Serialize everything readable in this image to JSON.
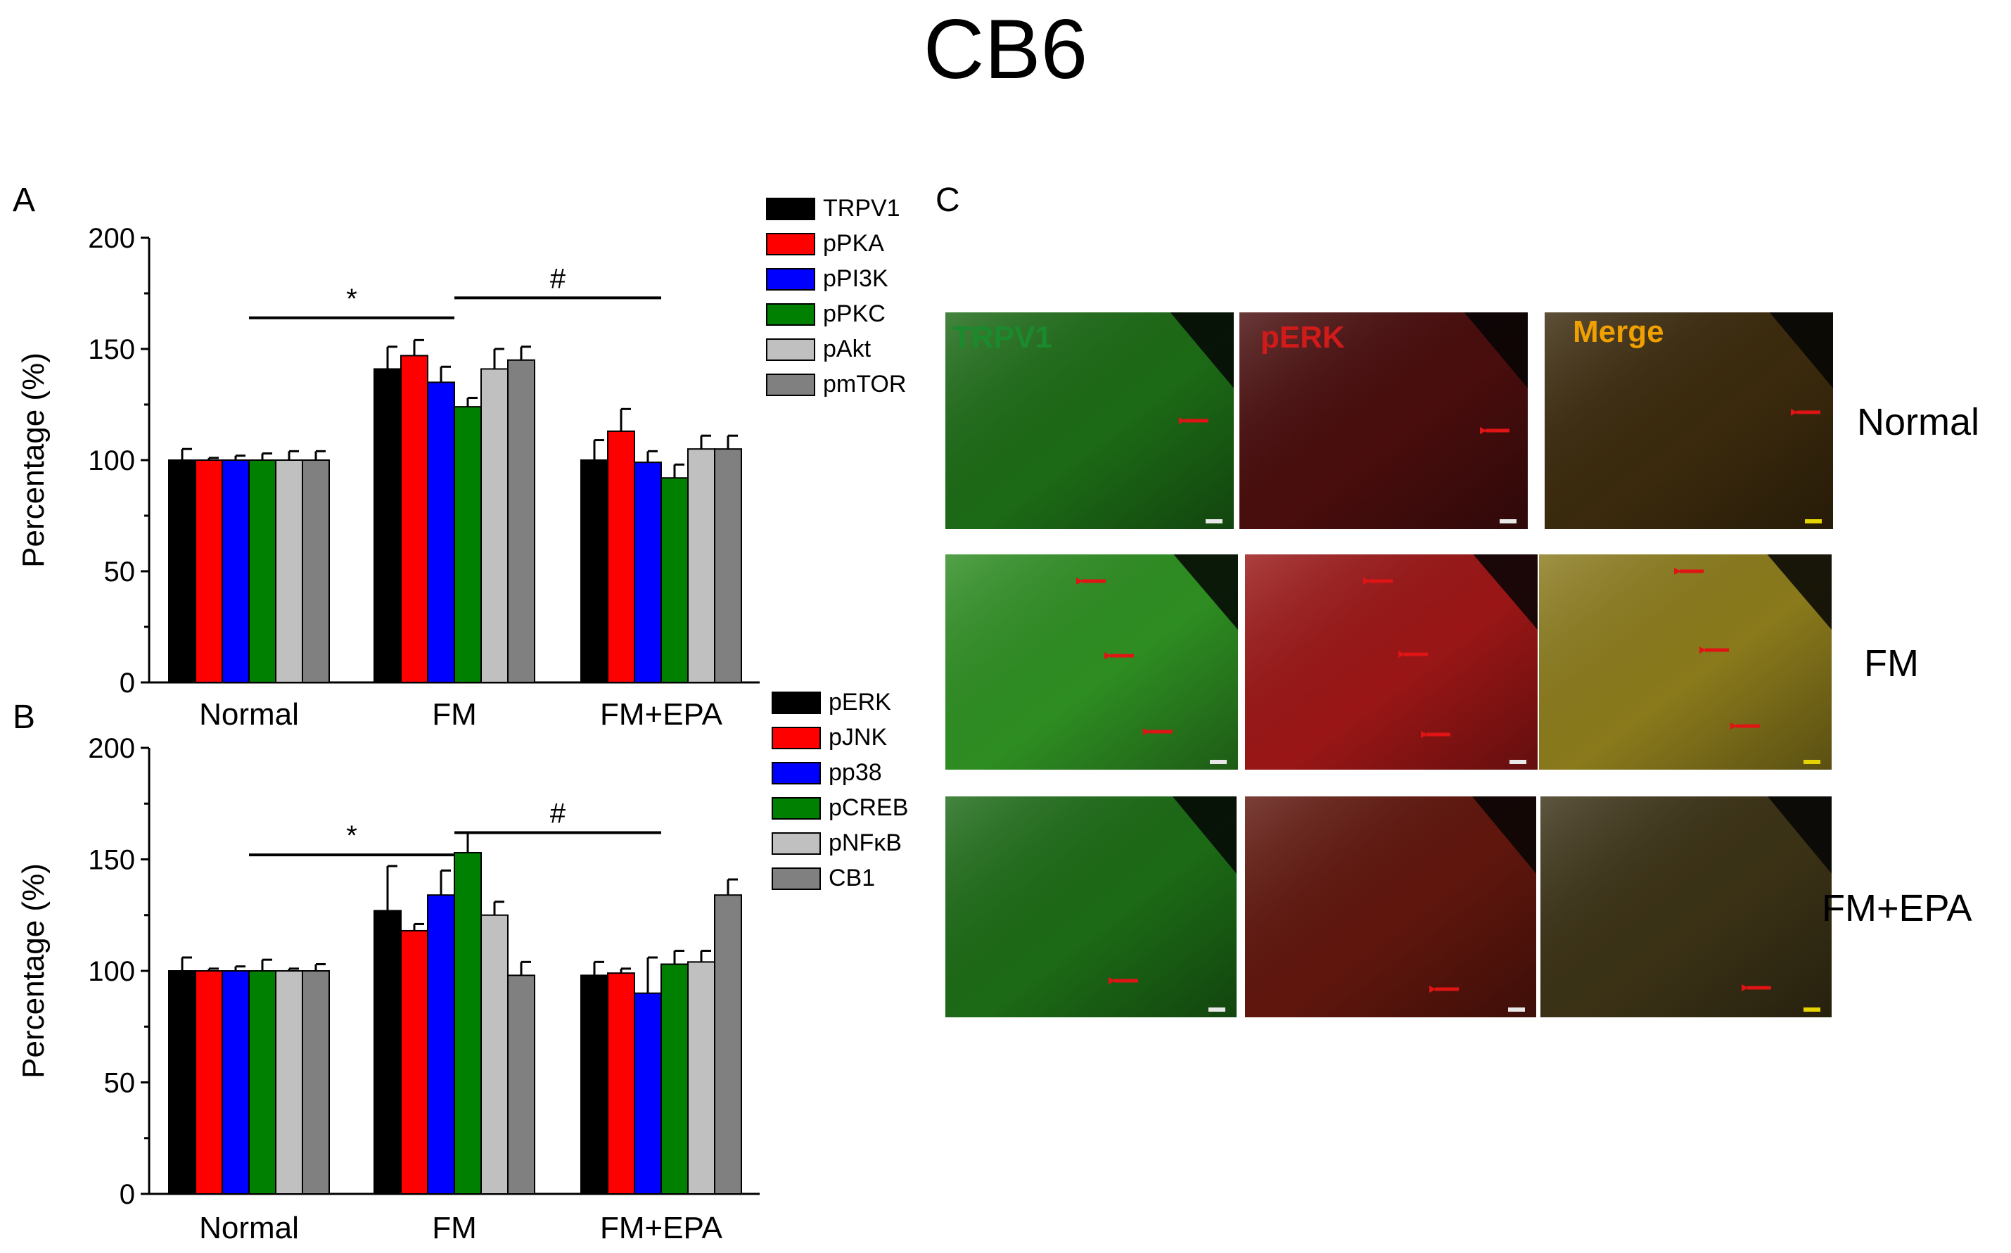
{
  "figure": {
    "title": "CB6",
    "panel_c_letter": "C",
    "micrographs": {
      "channel_labels": [
        "TRPV1",
        "pERK",
        "Merge"
      ],
      "channel_label_colors": [
        "#1a8a2c",
        "#d11a1a",
        "#f0a000"
      ],
      "row_labels": [
        "Normal",
        "FM",
        "FM+EPA"
      ],
      "tints": [
        [
          "#1f6a14",
          "#4a0f0b",
          "#3a2a10"
        ],
        [
          "#2f8d20",
          "#9a1614",
          "#8a7a1c"
        ],
        [
          "#1d6a16",
          "#5e1210",
          "#3a3212"
        ]
      ],
      "arrow_color": "#e01414",
      "scale_bar_color": "#e8e8e8",
      "merge_scale_bar_color": "#e6d400"
    },
    "colors": {
      "series": [
        "#000000",
        "#ff0000",
        "#0000ff",
        "#008000",
        "#c0c0c0",
        "#808080"
      ]
    }
  },
  "chart_data": [
    {
      "panel": "A",
      "type": "bar",
      "ylabel": "Percentage (%)",
      "xlabel": "",
      "ylim": [
        0,
        200
      ],
      "yticks": [
        0,
        50,
        100,
        150,
        200
      ],
      "categories": [
        "Normal",
        "FM",
        "FM+EPA"
      ],
      "series": [
        {
          "name": "TRPV1",
          "values": [
            100,
            141,
            100
          ],
          "errors": [
            5,
            10,
            9
          ]
        },
        {
          "name": "pPKA",
          "values": [
            100,
            147,
            113
          ],
          "errors": [
            1,
            7,
            10
          ]
        },
        {
          "name": "pPI3K",
          "values": [
            100,
            135,
            99
          ],
          "errors": [
            2,
            7,
            5
          ]
        },
        {
          "name": "pPKC",
          "values": [
            100,
            124,
            92
          ],
          "errors": [
            3,
            4,
            6
          ]
        },
        {
          "name": "pAkt",
          "values": [
            100,
            141,
            105
          ],
          "errors": [
            4,
            9,
            6
          ]
        },
        {
          "name": "pmTOR",
          "values": [
            100,
            145,
            105
          ],
          "errors": [
            4,
            6,
            6
          ]
        }
      ],
      "annotations": [
        {
          "text": "*",
          "from": "Normal",
          "to": "FM",
          "y": 164
        },
        {
          "text": "#",
          "from": "FM",
          "to": "FM+EPA",
          "y": 173
        }
      ]
    },
    {
      "panel": "B",
      "type": "bar",
      "ylabel": "Percentage (%)",
      "xlabel": "",
      "ylim": [
        0,
        200
      ],
      "yticks": [
        0,
        50,
        100,
        150,
        200
      ],
      "categories": [
        "Normal",
        "FM",
        "FM+EPA"
      ],
      "series": [
        {
          "name": "pERK",
          "values": [
            100,
            127,
            98
          ],
          "errors": [
            6,
            20,
            6
          ]
        },
        {
          "name": "pJNK",
          "values": [
            100,
            118,
            99
          ],
          "errors": [
            1,
            3,
            2
          ]
        },
        {
          "name": "pp38",
          "values": [
            100,
            134,
            90
          ],
          "errors": [
            2,
            11,
            16
          ]
        },
        {
          "name": "pCREB",
          "values": [
            100,
            153,
            103
          ],
          "errors": [
            5,
            9,
            6
          ]
        },
        {
          "name": "pNFκB",
          "values": [
            100,
            125,
            104
          ],
          "errors": [
            1,
            6,
            5
          ]
        },
        {
          "name": "CB1",
          "values": [
            100,
            98,
            134
          ],
          "errors": [
            3,
            6,
            7
          ]
        }
      ],
      "annotations": [
        {
          "text": "*",
          "from": "Normal",
          "to": "FM",
          "y": 152
        },
        {
          "text": "#",
          "from": "FM",
          "to": "FM+EPA",
          "y": 162
        }
      ]
    }
  ]
}
